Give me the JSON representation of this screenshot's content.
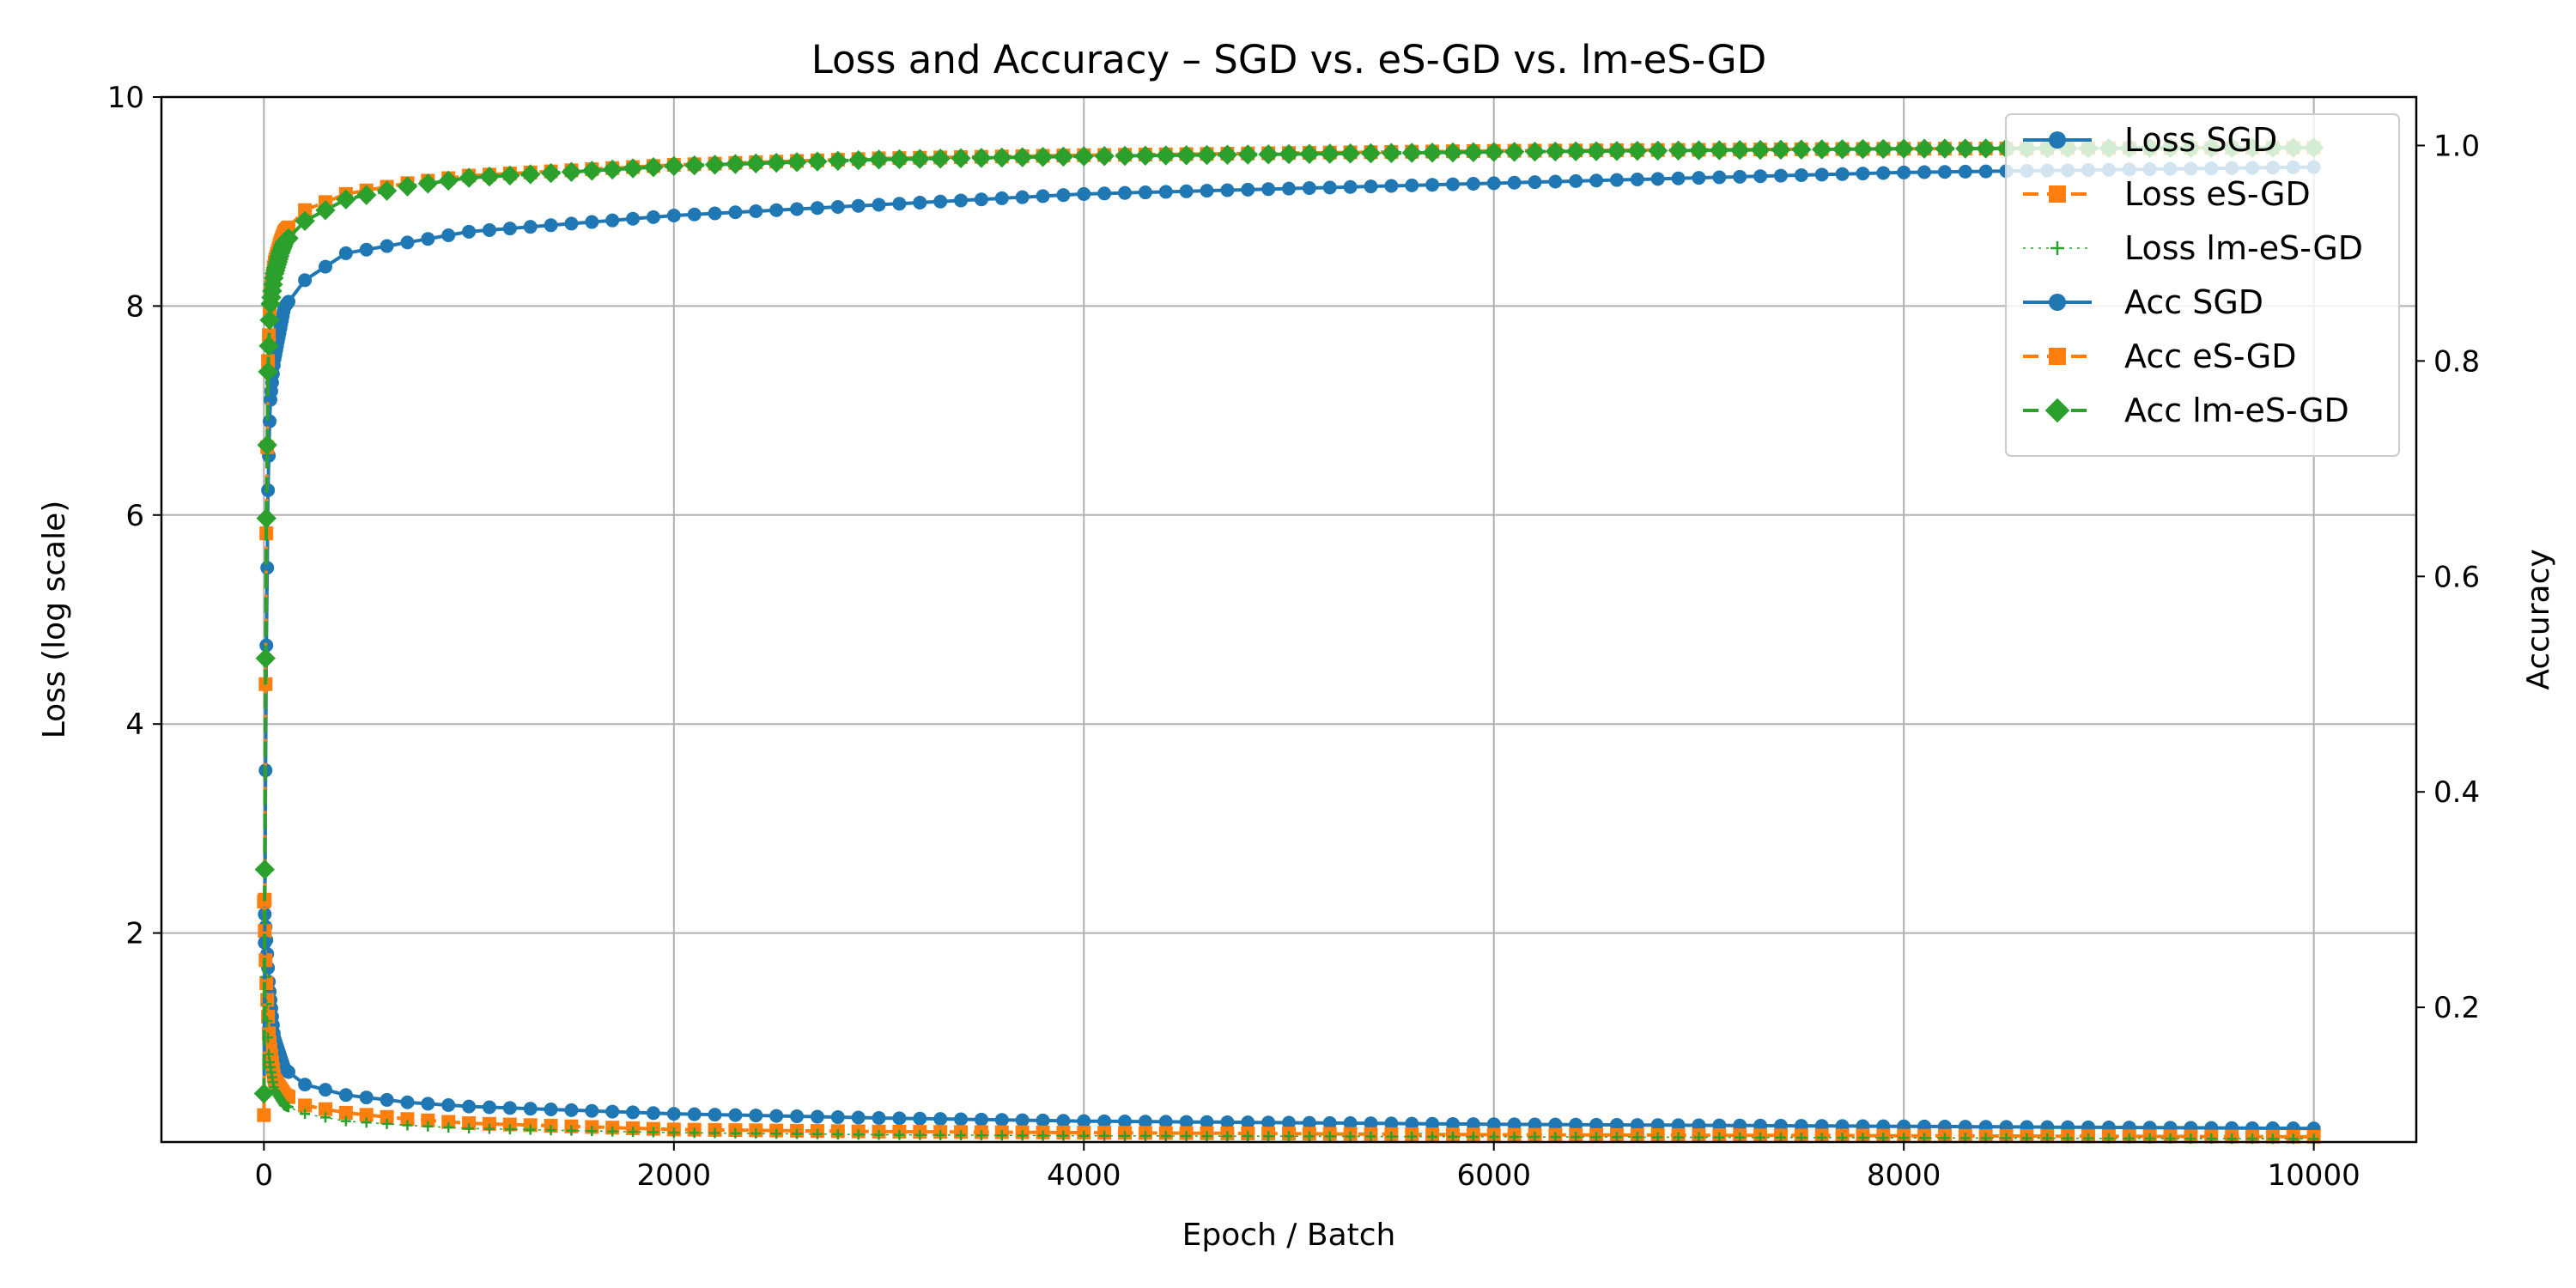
{
  "chart_data": {
    "type": "line",
    "title": "Loss and Accuracy – SGD vs. eS-GD vs. lm-eS-GD",
    "xlabel": "Epoch / Batch",
    "ylabel_left": "Loss (log scale)",
    "ylabel_right": "Accuracy",
    "xlim": [
      -500,
      10500
    ],
    "ylim_left": [
      0,
      10
    ],
    "ylim_right": [
      0.075,
      1.045
    ],
    "x_ticks": [
      0,
      2000,
      4000,
      6000,
      8000,
      10000
    ],
    "x_tick_labels": [
      "0",
      "2000",
      "4000",
      "6000",
      "8000",
      "10000"
    ],
    "y_left_ticks": [
      2,
      4,
      6,
      8,
      10
    ],
    "y_left_tick_labels": [
      "2",
      "4",
      "6",
      "8",
      "10"
    ],
    "y_right_ticks": [
      0.2,
      0.4,
      0.6,
      0.8,
      1.0
    ],
    "y_right_tick_labels": [
      "0.2",
      "0.4",
      "0.6",
      "0.8",
      "1.0"
    ],
    "grid": true,
    "legend_position": "top-right",
    "series": [
      {
        "name": "Loss SGD",
        "axis": "left",
        "color": "#1f77b4",
        "style": "solid",
        "marker": "circle",
        "x": [
          0,
          10,
          25,
          50,
          100,
          200,
          400,
          700,
          1000,
          2000,
          3000,
          4000,
          6000,
          8000,
          10000
        ],
        "values": [
          2.3,
          2.0,
          1.5,
          1.0,
          0.7,
          0.55,
          0.45,
          0.38,
          0.34,
          0.27,
          0.23,
          0.2,
          0.17,
          0.15,
          0.13
        ]
      },
      {
        "name": "Loss eS-GD",
        "axis": "left",
        "color": "#ff7f0e",
        "style": "dashed",
        "marker": "square",
        "x": [
          0,
          10,
          25,
          50,
          100,
          200,
          400,
          700,
          1000,
          2000,
          3000,
          4000,
          6000,
          8000,
          10000
        ],
        "values": [
          2.3,
          1.6,
          1.0,
          0.6,
          0.45,
          0.35,
          0.28,
          0.22,
          0.18,
          0.12,
          0.1,
          0.09,
          0.07,
          0.06,
          0.05
        ]
      },
      {
        "name": "Loss lm-eS-GD",
        "axis": "left",
        "color": "#2ca02c",
        "style": "dotted",
        "marker": "plus",
        "x": [
          0,
          10,
          25,
          50,
          100,
          200,
          400,
          700,
          1000,
          2000,
          3000,
          4000,
          6000,
          8000,
          10000
        ],
        "values": [
          2.3,
          1.4,
          0.8,
          0.5,
          0.35,
          0.27,
          0.2,
          0.16,
          0.13,
          0.09,
          0.07,
          0.06,
          0.05,
          0.04,
          0.03
        ]
      },
      {
        "name": "Acc SGD",
        "axis": "right",
        "color": "#1f77b4",
        "style": "solid",
        "marker": "circle",
        "x": [
          0,
          5,
          10,
          20,
          30,
          50,
          80,
          100,
          200,
          400,
          700,
          1000,
          2000,
          3000,
          4000,
          6000,
          8000,
          10000
        ],
        "values": [
          0.1,
          0.3,
          0.5,
          0.68,
          0.76,
          0.8,
          0.83,
          0.85,
          0.875,
          0.9,
          0.91,
          0.92,
          0.935,
          0.945,
          0.955,
          0.965,
          0.975,
          0.98
        ]
      },
      {
        "name": "Acc eS-GD",
        "axis": "right",
        "color": "#ff7f0e",
        "style": "dashed",
        "marker": "square",
        "x": [
          0,
          5,
          10,
          20,
          30,
          50,
          80,
          100,
          200,
          400,
          700,
          1000,
          2000,
          3000,
          4000,
          6000,
          8000,
          10000
        ],
        "values": [
          0.1,
          0.35,
          0.6,
          0.8,
          0.86,
          0.89,
          0.91,
          0.92,
          0.94,
          0.955,
          0.965,
          0.972,
          0.982,
          0.988,
          0.991,
          0.995,
          0.997,
          0.998
        ]
      },
      {
        "name": "Acc lm-eS-GD",
        "axis": "right",
        "color": "#2ca02c",
        "style": "dashed",
        "marker": "diamond",
        "x": [
          0,
          5,
          10,
          20,
          30,
          50,
          80,
          100,
          200,
          400,
          700,
          1000,
          2000,
          3000,
          4000,
          6000,
          8000,
          10000
        ],
        "values": [
          0.12,
          0.38,
          0.62,
          0.79,
          0.85,
          0.88,
          0.9,
          0.91,
          0.93,
          0.95,
          0.962,
          0.97,
          0.981,
          0.987,
          0.99,
          0.994,
          0.997,
          0.998
        ]
      }
    ]
  }
}
